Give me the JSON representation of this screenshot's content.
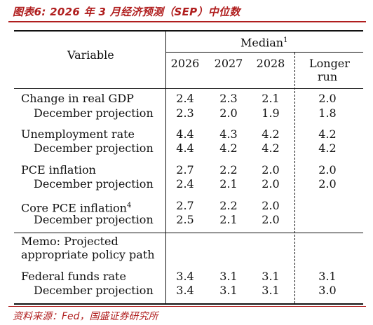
{
  "caption": "图表6:  2026 年 3 月经济预测（SEP）中位数",
  "source": "资料来源：Fed，国盛证券研究所",
  "header": {
    "variable": "Variable",
    "median": "Median",
    "median_sup": "1",
    "years": [
      "2026",
      "2027",
      "2028"
    ],
    "longer_run_1": "Longer",
    "longer_run_2": "run"
  },
  "rows": [
    {
      "label": "Change in real GDP",
      "indent": false,
      "values": [
        "2.4",
        "2.3",
        "2.1"
      ],
      "longer": "2.0"
    },
    {
      "label": "December projection",
      "indent": true,
      "values": [
        "2.3",
        "2.0",
        "1.9"
      ],
      "longer": "1.8"
    },
    {
      "label": "Unemployment rate",
      "indent": false,
      "values": [
        "4.4",
        "4.3",
        "4.2"
      ],
      "longer": "4.2"
    },
    {
      "label": "December projection",
      "indent": true,
      "values": [
        "4.4",
        "4.2",
        "4.2"
      ],
      "longer": "4.2"
    },
    {
      "label": "PCE inflation",
      "indent": false,
      "values": [
        "2.7",
        "2.2",
        "2.0"
      ],
      "longer": "2.0"
    },
    {
      "label": "December projection",
      "indent": true,
      "values": [
        "2.4",
        "2.1",
        "2.0"
      ],
      "longer": "2.0"
    },
    {
      "label": "Core PCE inflation",
      "sup": "4",
      "indent": false,
      "values": [
        "2.7",
        "2.2",
        "2.0"
      ],
      "longer": ""
    },
    {
      "label": "December projection",
      "indent": true,
      "values": [
        "2.5",
        "2.1",
        "2.0"
      ],
      "longer": ""
    }
  ],
  "memo": {
    "line1": "Memo: Projected",
    "line2": "appropriate policy path"
  },
  "fed_rows": [
    {
      "label": "Federal funds rate",
      "indent": false,
      "values": [
        "3.4",
        "3.1",
        "3.1"
      ],
      "longer": "3.1"
    },
    {
      "label": "December projection",
      "indent": true,
      "values": [
        "3.4",
        "3.1",
        "3.1"
      ],
      "longer": "3.0"
    }
  ]
}
